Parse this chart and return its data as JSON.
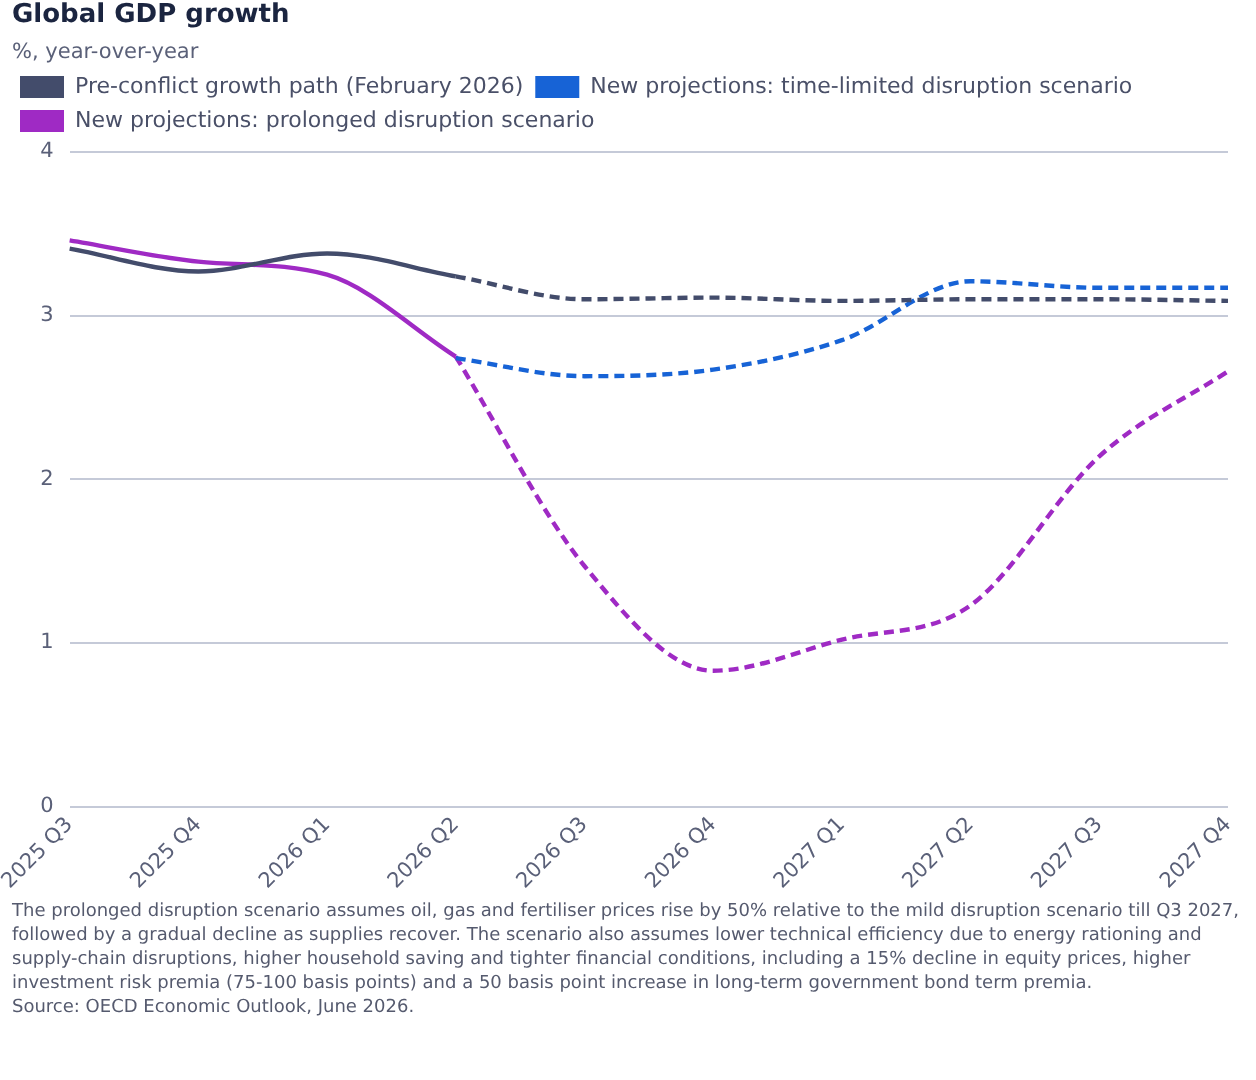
{
  "chart_data": {
    "type": "line",
    "title": "Global GDP growth",
    "subtitle": "%, year-over-year",
    "categories": [
      "2025 Q3",
      "2025 Q4",
      "2026 Q1",
      "2026 Q2",
      "2026 Q3",
      "2026 Q4",
      "2027 Q1",
      "2027 Q2",
      "2027 Q3",
      "2027 Q4"
    ],
    "series": [
      {
        "name": "Pre-conflict growth path (February 2026)",
        "color": "#434c6b",
        "line_style": "solid",
        "values": [
          3.41,
          3.27,
          3.38,
          3.24,
          null,
          null,
          null,
          null,
          null,
          null
        ]
      },
      {
        "color": "#434c6b",
        "line_style": "dashed",
        "values": [
          null,
          null,
          null,
          3.24,
          3.1,
          3.11,
          3.09,
          3.1,
          3.1,
          3.09
        ]
      },
      {
        "name": "New projections: time-limited disruption scenario",
        "color": "#1763d6",
        "line_style": "dashed",
        "values": [
          null,
          null,
          null,
          2.74,
          2.63,
          2.67,
          2.85,
          3.21,
          3.17,
          3.17
        ]
      },
      {
        "name": "New projections: prolonged disruption scenario",
        "color": "#9f2ac4",
        "line_style": "solid",
        "values": [
          3.46,
          3.33,
          3.25,
          2.75,
          null,
          null,
          null,
          null,
          null,
          null
        ]
      },
      {
        "color": "#9f2ac4",
        "line_style": "dashed",
        "values": [
          null,
          null,
          null,
          2.75,
          1.47,
          0.83,
          1.02,
          1.23,
          2.14,
          2.66
        ]
      }
    ],
    "ylim": [
      0,
      4
    ],
    "yticks": [
      0,
      1,
      2,
      3,
      4
    ],
    "grid": "y",
    "legend": "top left",
    "marker": "none",
    "annotations": [
      "The prolonged disruption scenario assumes oil, gas and fertiliser prices rise by 50% relative to the mild disruption scenario till Q3 2027, followed by a gradual decline as supplies recover. The scenario also assumes lower technical efficiency due to energy rationing and supply-chain disruptions, higher household saving and tighter financial conditions, including a 15% decline in equity prices, higher investment risk premia (75-100 basis points) and a 50 basis point increase in long-term government bond term premia.",
      "Source: OECD Economic Outlook, June 2026."
    ]
  }
}
